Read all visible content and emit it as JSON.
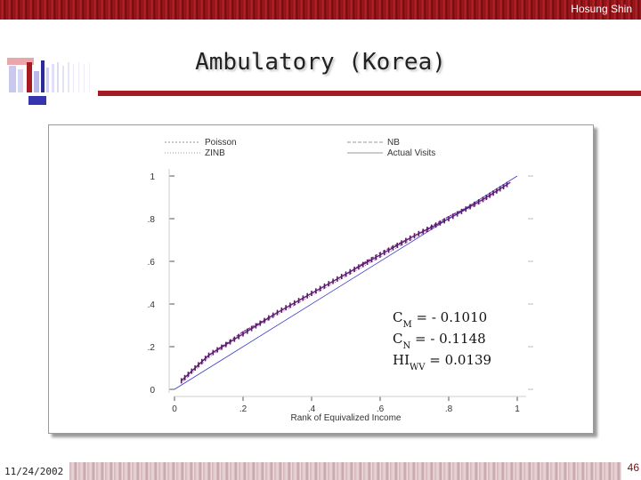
{
  "header": {
    "author": "Hosung Shin"
  },
  "slide": {
    "title": "Ambulatory (Korea)",
    "date": "11/24/2002",
    "page": "46"
  },
  "colors": {
    "band": "#8b0f12",
    "accent": "#a21c22",
    "series_dark": "#5a1a6b",
    "series_blue": "#3a3ac8"
  },
  "chart_data": {
    "type": "line",
    "xlabel": "Rank of Equivalized Income",
    "ylabel": "",
    "xlim": [
      0,
      1
    ],
    "ylim": [
      0,
      1
    ],
    "xticks": [
      0,
      0.2,
      0.4,
      0.6,
      0.8,
      1
    ],
    "xtick_labels": [
      "0",
      ".2",
      ".4",
      ".6",
      ".8",
      "1"
    ],
    "yticks": [
      0,
      0.2,
      0.4,
      0.6,
      0.8,
      1
    ],
    "ytick_labels": [
      "0",
      ".2",
      ".4",
      ".6",
      ".8",
      "1"
    ],
    "legend": {
      "placement": "top",
      "entries": [
        "Poisson",
        "NB",
        "ZINB",
        "Actual Visits"
      ]
    },
    "series": [
      {
        "name": "Poisson",
        "x": [
          0.02,
          0.1,
          0.2,
          0.3,
          0.4,
          0.5,
          0.6,
          0.7,
          0.8,
          0.9,
          0.98
        ],
        "y": [
          0.04,
          0.16,
          0.26,
          0.36,
          0.45,
          0.54,
          0.63,
          0.72,
          0.8,
          0.89,
          0.97
        ]
      },
      {
        "name": "NB",
        "x": [
          0.02,
          0.1,
          0.2,
          0.3,
          0.4,
          0.5,
          0.6,
          0.7,
          0.8,
          0.9,
          0.98
        ],
        "y": [
          0.04,
          0.16,
          0.27,
          0.36,
          0.45,
          0.54,
          0.64,
          0.72,
          0.81,
          0.89,
          0.97
        ]
      },
      {
        "name": "ZINB",
        "x": [
          0.02,
          0.1,
          0.2,
          0.3,
          0.4,
          0.5,
          0.6,
          0.7,
          0.8,
          0.9,
          0.98
        ],
        "y": [
          0.03,
          0.15,
          0.26,
          0.35,
          0.44,
          0.53,
          0.62,
          0.71,
          0.8,
          0.88,
          0.97
        ]
      },
      {
        "name": "Actual Visits",
        "x": [
          0.0,
          1.0
        ],
        "y": [
          0.0,
          1.0
        ]
      }
    ],
    "annotations": [
      {
        "main": "C",
        "sub": "M",
        "rest": " = - 0.1010"
      },
      {
        "main": "C",
        "sub": "N",
        "rest": " = - 0.1148"
      },
      {
        "main": "HI",
        "sub": "WV",
        "rest": " = 0.0139"
      }
    ]
  }
}
